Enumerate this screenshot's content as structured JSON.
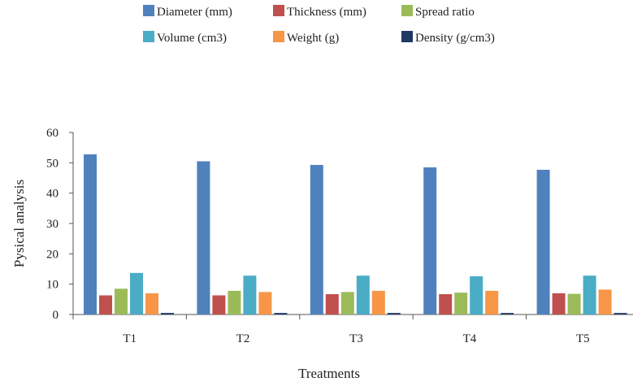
{
  "chart_data": {
    "type": "bar",
    "title": "",
    "xlabel": "Treatments",
    "ylabel": "Pysical analysis",
    "categories": [
      "T1",
      "T2",
      "T3",
      "T4",
      "T5"
    ],
    "ylim": [
      0,
      60
    ],
    "yticks": [
      "0",
      "10",
      "20",
      "30",
      "40",
      "50",
      "60"
    ],
    "grid": false,
    "legend_position": "top",
    "series": [
      {
        "name": "Diameter (mm)",
        "color": "#4F81BD",
        "values": [
          52.8,
          50.5,
          49.3,
          48.5,
          47.7
        ]
      },
      {
        "name": "Thickness (mm)",
        "color": "#C0504D",
        "values": [
          6.3,
          6.3,
          6.7,
          6.7,
          7.0
        ]
      },
      {
        "name": "Spread  ratio",
        "color": "#9BBB59",
        "values": [
          8.5,
          7.8,
          7.4,
          7.2,
          6.8
        ]
      },
      {
        "name": "Volume (cm3)",
        "color": "#4BACC6",
        "values": [
          13.7,
          12.8,
          12.8,
          12.6,
          12.8
        ]
      },
      {
        "name": "Weight (g)",
        "color": "#F79646",
        "values": [
          7.0,
          7.4,
          7.8,
          7.8,
          8.2
        ]
      },
      {
        "name": "Density (g/cm3)",
        "color": "#1F3864",
        "values": [
          0.5,
          0.5,
          0.5,
          0.5,
          0.5
        ]
      }
    ]
  }
}
